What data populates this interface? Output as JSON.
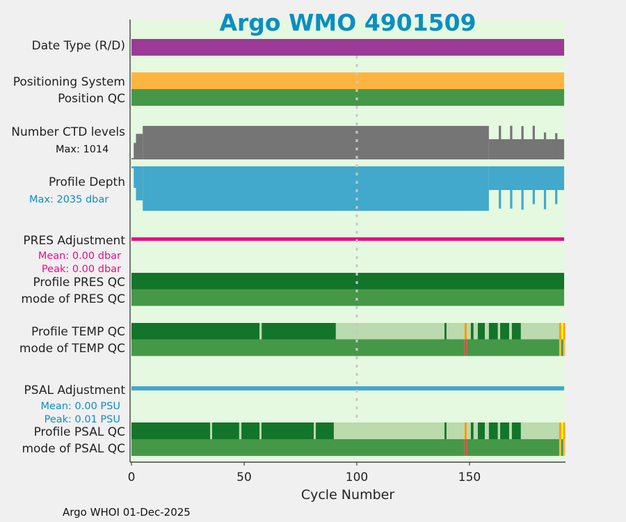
{
  "chart_data": {
    "type": "bar",
    "title": "Argo WMO 4901509",
    "xlabel": "Cycle Number",
    "xlim": [
      0,
      192
    ],
    "xticks": [
      0,
      50,
      100,
      150
    ],
    "footer": "Argo WHOI 01-Dec-2025",
    "marker_cycle": 100,
    "colors": {
      "background": "#e5f8e0",
      "title": "#0a8fc0",
      "date_type": "#9b3a97",
      "positioning": "#fdb53f",
      "qc_good": "#137529",
      "qc_mode_good": "#459847",
      "qc_mixed": "#bbdaad",
      "qc_orange": "#ff9a10",
      "qc_yellow": "#ffff00",
      "qc_red": "#f04848",
      "qc_light_orange": "#ffb840",
      "ctd": "#757575",
      "depth": "#42a8cc",
      "pres_adj": "#ee0a85",
      "psal_adj": "#42a8cc"
    },
    "rows": {
      "date_type": {
        "label": "Date Type (R/D)",
        "segments": [
          [
            0,
            192,
            "date_type"
          ]
        ]
      },
      "positioning": {
        "label": "Positioning System",
        "segments": [
          [
            0,
            192,
            "positioning"
          ]
        ]
      },
      "position_qc": {
        "label": "Position QC",
        "segments": [
          [
            0,
            192,
            "qc_mode_good"
          ]
        ]
      },
      "ctd_levels": {
        "label": "Number CTD levels",
        "note": "Max: 1014",
        "max": 1014,
        "segments": [
          [
            0,
            1,
            40
          ],
          [
            1,
            2,
            490
          ],
          [
            2,
            5,
            760
          ],
          [
            5,
            158.6,
            995
          ],
          [
            158.6,
            192,
            600
          ]
        ],
        "spikes": [
          [
            163,
            1000
          ],
          [
            168,
            1000
          ],
          [
            173,
            990
          ],
          [
            178,
            1000
          ],
          [
            183,
            800
          ],
          [
            188,
            780
          ]
        ]
      },
      "profile_depth": {
        "label": "Profile Depth",
        "note": "Max: 2035 dbar",
        "max": 2035,
        "segments": [
          [
            0,
            1,
            90
          ],
          [
            1,
            2,
            970
          ],
          [
            2,
            5,
            1530
          ],
          [
            5,
            158.6,
            2000
          ],
          [
            158.6,
            192,
            1065
          ]
        ],
        "spikes": [
          [
            163,
            1900
          ],
          [
            168,
            1900
          ],
          [
            173,
            1950
          ],
          [
            178,
            1700
          ],
          [
            183,
            1930
          ],
          [
            188,
            1700
          ]
        ]
      },
      "pres_adj": {
        "label": "PRES Adjustment",
        "mean": "Mean: 0.00 dbar",
        "peak": "Peak: 0.00 dbar"
      },
      "pres_qc": {
        "label": "Profile PRES QC",
        "segments": [
          [
            0,
            192,
            "qc_good"
          ]
        ]
      },
      "pres_mode": {
        "label": "mode of PRES QC",
        "segments": [
          [
            0,
            192,
            "qc_mode_good"
          ]
        ]
      },
      "temp_qc": {
        "label": "Profile TEMP QC",
        "segments": [
          [
            0,
            56.8,
            "qc_good"
          ],
          [
            56.8,
            57.8,
            "qc_mixed"
          ],
          [
            57.8,
            90.7,
            "qc_good"
          ],
          [
            90.7,
            138.9,
            "qc_mixed"
          ],
          [
            138.9,
            139.8,
            "qc_good"
          ],
          [
            139.8,
            147.8,
            "qc_mixed"
          ],
          [
            147.8,
            148.8,
            "qc_orange"
          ],
          [
            148.8,
            150.6,
            "qc_mixed"
          ],
          [
            150.6,
            151.8,
            "qc_good"
          ],
          [
            151.8,
            153.7,
            "qc_mixed"
          ],
          [
            153.7,
            156.8,
            "qc_good"
          ],
          [
            156.8,
            158.6,
            "qc_mixed"
          ],
          [
            158.6,
            162.6,
            "qc_good"
          ],
          [
            162.6,
            163.6,
            "qc_mixed"
          ],
          [
            163.6,
            167.6,
            "qc_good"
          ],
          [
            167.6,
            168.8,
            "qc_mixed"
          ],
          [
            168.8,
            172.8,
            "qc_good"
          ],
          [
            172.8,
            189.8,
            "qc_mixed"
          ],
          [
            189.8,
            190.7,
            "qc_orange"
          ],
          [
            190.7,
            191.6,
            "qc_yellow"
          ],
          [
            191.6,
            192.4,
            "qc_orange"
          ]
        ]
      },
      "temp_mode": {
        "label": "mode of TEMP QC",
        "segments": [
          [
            0,
            147.8,
            "qc_mode_good"
          ],
          [
            147.8,
            148.8,
            "qc_red"
          ],
          [
            148.8,
            189.8,
            "qc_mode_good"
          ],
          [
            189.8,
            190.7,
            "qc_light_orange"
          ],
          [
            190.7,
            191.6,
            "qc_mode_good"
          ],
          [
            191.6,
            192.4,
            "qc_light_orange"
          ]
        ]
      },
      "psal_adj": {
        "label": "PSAL Adjustment",
        "mean": "Mean: 0.00 PSU",
        "peak": "Peak: 0.01 PSU"
      },
      "psal_qc": {
        "label": "Profile PSAL QC",
        "segments": [
          [
            0,
            34.9,
            "qc_good"
          ],
          [
            34.9,
            35.8,
            "qc_mixed"
          ],
          [
            35.8,
            47.8,
            "qc_good"
          ],
          [
            47.8,
            48.8,
            "qc_mixed"
          ],
          [
            48.8,
            56.8,
            "qc_good"
          ],
          [
            56.8,
            57.7,
            "qc_mixed"
          ],
          [
            57.7,
            80.9,
            "qc_good"
          ],
          [
            80.9,
            81.8,
            "qc_mixed"
          ],
          [
            81.8,
            89.8,
            "qc_good"
          ],
          [
            89.8,
            138.9,
            "qc_mixed"
          ],
          [
            138.9,
            139.8,
            "qc_good"
          ],
          [
            139.8,
            147.8,
            "qc_mixed"
          ],
          [
            147.8,
            148.8,
            "qc_orange"
          ],
          [
            148.8,
            150.6,
            "qc_mixed"
          ],
          [
            150.6,
            151.8,
            "qc_good"
          ],
          [
            151.8,
            153.7,
            "qc_mixed"
          ],
          [
            153.7,
            156.8,
            "qc_good"
          ],
          [
            156.8,
            158.6,
            "qc_mixed"
          ],
          [
            158.6,
            162.6,
            "qc_good"
          ],
          [
            162.6,
            163.6,
            "qc_mixed"
          ],
          [
            163.6,
            167.6,
            "qc_good"
          ],
          [
            167.6,
            168.8,
            "qc_mixed"
          ],
          [
            168.8,
            172.8,
            "qc_good"
          ],
          [
            172.8,
            189.8,
            "qc_mixed"
          ],
          [
            189.8,
            190.7,
            "qc_orange"
          ],
          [
            190.7,
            191.6,
            "qc_yellow"
          ],
          [
            191.6,
            192.4,
            "qc_orange"
          ]
        ]
      },
      "psal_mode": {
        "label": "mode of PSAL QC",
        "segments": [
          [
            0,
            147.8,
            "qc_mode_good"
          ],
          [
            147.8,
            148.8,
            "qc_red"
          ],
          [
            148.8,
            189.8,
            "qc_mode_good"
          ],
          [
            189.8,
            190.7,
            "qc_light_orange"
          ],
          [
            190.7,
            191.6,
            "qc_mode_good"
          ],
          [
            191.6,
            192.4,
            "qc_light_orange"
          ]
        ]
      }
    }
  }
}
